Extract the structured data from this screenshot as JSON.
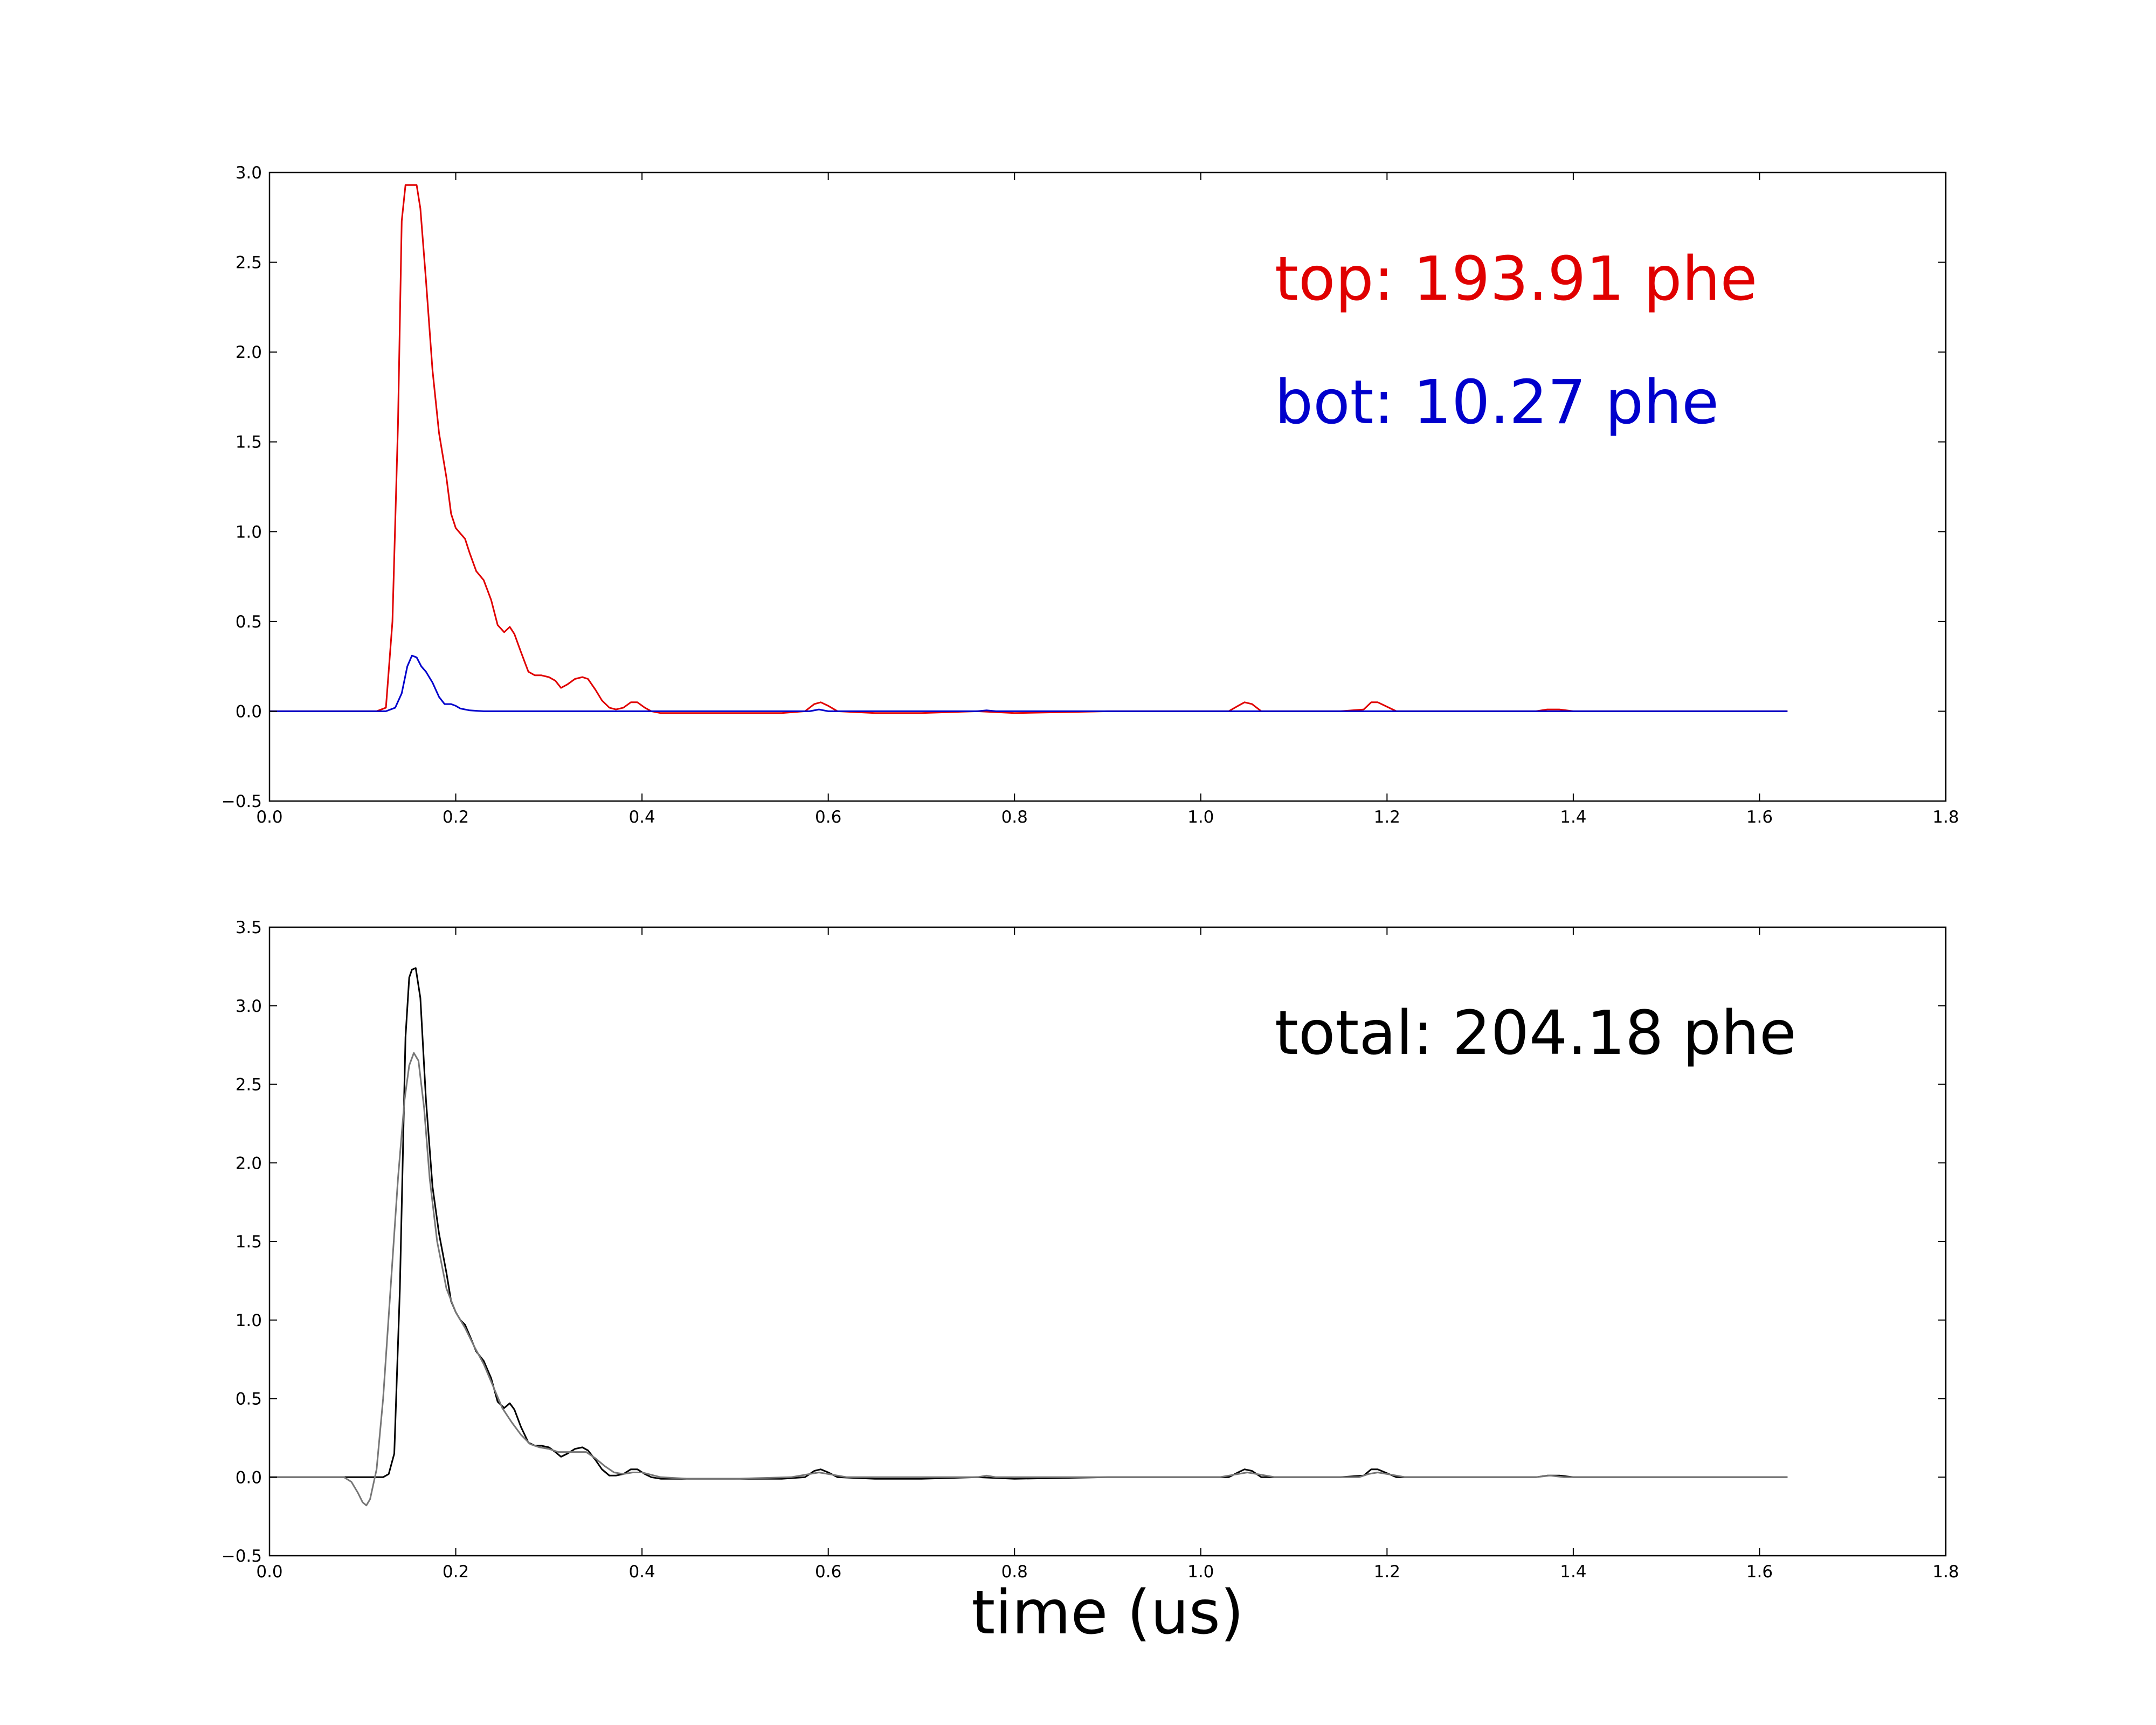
{
  "chart_data": [
    {
      "type": "line",
      "xlim": [
        0.0,
        1.8
      ],
      "ylim": [
        -0.5,
        3.0
      ],
      "xticks": [
        "0.0",
        "0.2",
        "0.4",
        "0.6",
        "0.8",
        "1.0",
        "1.2",
        "1.4",
        "1.6",
        "1.8"
      ],
      "yticks": [
        "−0.5",
        "0.0",
        "0.5",
        "1.0",
        "1.5",
        "2.0",
        "2.5",
        "3.0"
      ],
      "annotations": [
        {
          "text": "top: 193.91 phe",
          "color": "#e00000"
        },
        {
          "text": "bot: 10.27 phe",
          "color": "#0000cc"
        }
      ],
      "grid": false,
      "series": [
        {
          "color": "#e00000",
          "x": [
            0.0,
            0.1,
            0.115,
            0.125,
            0.132,
            0.138,
            0.142,
            0.146,
            0.15,
            0.158,
            0.162,
            0.168,
            0.175,
            0.182,
            0.19,
            0.195,
            0.2,
            0.205,
            0.21,
            0.215,
            0.222,
            0.23,
            0.238,
            0.245,
            0.252,
            0.258,
            0.263,
            0.27,
            0.278,
            0.285,
            0.292,
            0.3,
            0.307,
            0.313,
            0.32,
            0.328,
            0.336,
            0.342,
            0.35,
            0.357,
            0.365,
            0.372,
            0.38,
            0.388,
            0.395,
            0.403,
            0.41,
            0.42,
            0.45,
            0.5,
            0.55,
            0.575,
            0.585,
            0.592,
            0.6,
            0.61,
            0.65,
            0.7,
            0.76,
            0.8,
            0.9,
            1.0,
            1.03,
            1.04,
            1.047,
            1.055,
            1.065,
            1.1,
            1.15,
            1.175,
            1.183,
            1.19,
            1.198,
            1.21,
            1.3,
            1.36,
            1.372,
            1.385,
            1.4,
            1.5,
            1.63
          ],
          "y": [
            0.0,
            0.0,
            0.0,
            0.02,
            0.5,
            1.6,
            2.73,
            2.93,
            2.93,
            2.93,
            2.8,
            2.4,
            1.9,
            1.55,
            1.3,
            1.1,
            1.02,
            0.99,
            0.96,
            0.88,
            0.78,
            0.73,
            0.62,
            0.48,
            0.44,
            0.47,
            0.43,
            0.33,
            0.22,
            0.2,
            0.2,
            0.19,
            0.17,
            0.13,
            0.15,
            0.18,
            0.19,
            0.18,
            0.12,
            0.06,
            0.02,
            0.01,
            0.02,
            0.05,
            0.05,
            0.02,
            0.0,
            -0.01,
            -0.01,
            -0.01,
            -0.01,
            0.0,
            0.04,
            0.05,
            0.03,
            0.0,
            -0.01,
            -0.01,
            0.0,
            -0.01,
            0.0,
            0.0,
            0.0,
            0.03,
            0.05,
            0.04,
            0.0,
            0.0,
            0.0,
            0.01,
            0.05,
            0.05,
            0.03,
            0.0,
            0.0,
            0.0,
            0.01,
            0.01,
            0.0,
            0.0,
            0.0
          ]
        },
        {
          "color": "#0000cc",
          "x": [
            0.0,
            0.1,
            0.125,
            0.135,
            0.142,
            0.148,
            0.153,
            0.158,
            0.163,
            0.168,
            0.175,
            0.182,
            0.188,
            0.195,
            0.2,
            0.205,
            0.215,
            0.23,
            0.3,
            0.4,
            0.58,
            0.59,
            0.6,
            0.76,
            0.77,
            0.78,
            1.0,
            1.63
          ],
          "y": [
            0.0,
            0.0,
            0.0,
            0.02,
            0.1,
            0.25,
            0.31,
            0.3,
            0.25,
            0.22,
            0.16,
            0.08,
            0.04,
            0.04,
            0.03,
            0.015,
            0.005,
            0.0,
            0.0,
            0.0,
            0.0,
            0.01,
            0.0,
            0.0,
            0.005,
            0.0,
            0.0,
            0.0
          ]
        }
      ]
    },
    {
      "type": "line",
      "xlim": [
        0.0,
        1.8
      ],
      "ylim": [
        -0.5,
        3.5
      ],
      "xticks": [
        "0.0",
        "0.2",
        "0.4",
        "0.6",
        "0.8",
        "1.0",
        "1.2",
        "1.4",
        "1.6",
        "1.8"
      ],
      "yticks": [
        "−0.5",
        "0.0",
        "0.5",
        "1.0",
        "1.5",
        "2.0",
        "2.5",
        "3.0",
        "3.5"
      ],
      "xlabel": "time (us)",
      "annotations": [
        {
          "text": "total: 204.18 phe",
          "color": "#000000"
        }
      ],
      "grid": false,
      "series": [
        {
          "color": "#000000",
          "x": [
            0.0,
            0.1,
            0.115,
            0.122,
            0.128,
            0.134,
            0.14,
            0.146,
            0.15,
            0.153,
            0.157,
            0.162,
            0.168,
            0.175,
            0.182,
            0.19,
            0.195,
            0.2,
            0.205,
            0.21,
            0.215,
            0.222,
            0.23,
            0.238,
            0.245,
            0.252,
            0.258,
            0.263,
            0.27,
            0.278,
            0.285,
            0.292,
            0.3,
            0.307,
            0.313,
            0.32,
            0.328,
            0.336,
            0.342,
            0.35,
            0.357,
            0.365,
            0.372,
            0.38,
            0.388,
            0.395,
            0.403,
            0.41,
            0.42,
            0.45,
            0.5,
            0.55,
            0.575,
            0.585,
            0.592,
            0.6,
            0.61,
            0.65,
            0.7,
            0.76,
            0.8,
            0.9,
            1.0,
            1.03,
            1.04,
            1.047,
            1.055,
            1.065,
            1.1,
            1.15,
            1.175,
            1.183,
            1.19,
            1.198,
            1.21,
            1.3,
            1.36,
            1.372,
            1.385,
            1.4,
            1.5,
            1.63
          ],
          "y": [
            0.0,
            0.0,
            0.0,
            0.0,
            0.02,
            0.15,
            1.2,
            2.8,
            3.18,
            3.23,
            3.24,
            3.05,
            2.4,
            1.85,
            1.55,
            1.3,
            1.12,
            1.05,
            1.0,
            0.97,
            0.9,
            0.8,
            0.74,
            0.63,
            0.48,
            0.44,
            0.47,
            0.43,
            0.32,
            0.22,
            0.2,
            0.2,
            0.19,
            0.16,
            0.13,
            0.15,
            0.18,
            0.19,
            0.17,
            0.11,
            0.05,
            0.01,
            0.01,
            0.02,
            0.05,
            0.05,
            0.02,
            0.0,
            -0.01,
            -0.01,
            -0.01,
            -0.01,
            0.0,
            0.04,
            0.05,
            0.03,
            0.0,
            -0.01,
            -0.01,
            0.0,
            -0.01,
            0.0,
            0.0,
            0.0,
            0.03,
            0.05,
            0.04,
            0.0,
            0.0,
            0.0,
            0.01,
            0.05,
            0.05,
            0.03,
            0.0,
            0.0,
            0.0,
            0.01,
            0.01,
            0.0,
            0.0,
            0.0
          ]
        },
        {
          "color": "#777777",
          "x": [
            0.0,
            0.08,
            0.088,
            0.095,
            0.1,
            0.104,
            0.108,
            0.115,
            0.122,
            0.13,
            0.138,
            0.145,
            0.15,
            0.155,
            0.16,
            0.166,
            0.172,
            0.18,
            0.19,
            0.2,
            0.21,
            0.22,
            0.23,
            0.24,
            0.25,
            0.26,
            0.27,
            0.28,
            0.29,
            0.3,
            0.31,
            0.32,
            0.33,
            0.34,
            0.35,
            0.36,
            0.37,
            0.38,
            0.39,
            0.4,
            0.42,
            0.45,
            0.5,
            0.56,
            0.58,
            0.59,
            0.6,
            0.62,
            0.76,
            0.77,
            0.78,
            1.02,
            1.04,
            1.05,
            1.06,
            1.08,
            1.17,
            1.18,
            1.19,
            1.2,
            1.22,
            1.36,
            1.375,
            1.39,
            1.63
          ],
          "y": [
            0.0,
            0.0,
            -0.03,
            -0.1,
            -0.16,
            -0.18,
            -0.14,
            0.05,
            0.5,
            1.2,
            1.9,
            2.4,
            2.62,
            2.7,
            2.65,
            2.35,
            1.9,
            1.5,
            1.2,
            1.05,
            0.95,
            0.83,
            0.72,
            0.58,
            0.44,
            0.35,
            0.27,
            0.21,
            0.19,
            0.18,
            0.16,
            0.16,
            0.16,
            0.16,
            0.12,
            0.07,
            0.03,
            0.02,
            0.03,
            0.03,
            0.0,
            -0.01,
            -0.01,
            0.0,
            0.02,
            0.03,
            0.02,
            0.0,
            0.0,
            0.01,
            0.0,
            0.0,
            0.02,
            0.03,
            0.02,
            0.0,
            0.0,
            0.02,
            0.03,
            0.02,
            0.0,
            0.0,
            0.01,
            0.0,
            0.0
          ]
        }
      ]
    }
  ]
}
